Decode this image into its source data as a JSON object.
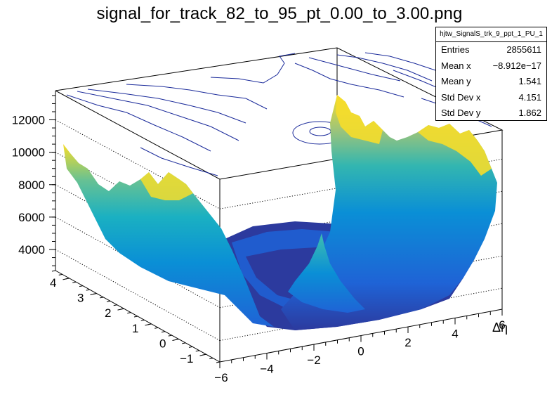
{
  "title": "signal_for_track_82_to_95_pt_0.00_to_3.00.png",
  "stats": {
    "name": "hjtw_SignalS_trk_9_ppt_1_PU_1",
    "rows": [
      {
        "key": "Entries",
        "value": "2855611"
      },
      {
        "key": "Mean x",
        "value": "−8.912e−17"
      },
      {
        "key": "Mean y",
        "value": "1.541"
      },
      {
        "key": "Std Dev x",
        "value": "4.151"
      },
      {
        "key": "Std Dev y",
        "value": "1.862"
      }
    ]
  },
  "chart_data": {
    "type": "surface",
    "xlabel": "Δη",
    "ylabel": "",
    "zlabel": "",
    "xlim": [
      -6,
      6
    ],
    "ylim": [
      -1.5,
      4.5
    ],
    "zlim": [
      2700,
      13800
    ],
    "x_ticks": [
      "−6",
      "−4",
      "−2",
      "0",
      "2",
      "4",
      "6"
    ],
    "y_ticks": [
      "−1",
      "0",
      "1",
      "2",
      "3",
      "4"
    ],
    "z_ticks": [
      "4000",
      "6000",
      "8000",
      "10000",
      "12000"
    ],
    "z_tick_values": [
      4000,
      6000,
      8000,
      10000,
      12000
    ],
    "contours_on_top": true,
    "grid": "z-dotted",
    "palette": [
      "#2c3a9e",
      "#1f63d6",
      "#0a8fd6",
      "#1ab0c2",
      "#66c194",
      "#c9bf5a",
      "#f6dd2a"
    ]
  }
}
